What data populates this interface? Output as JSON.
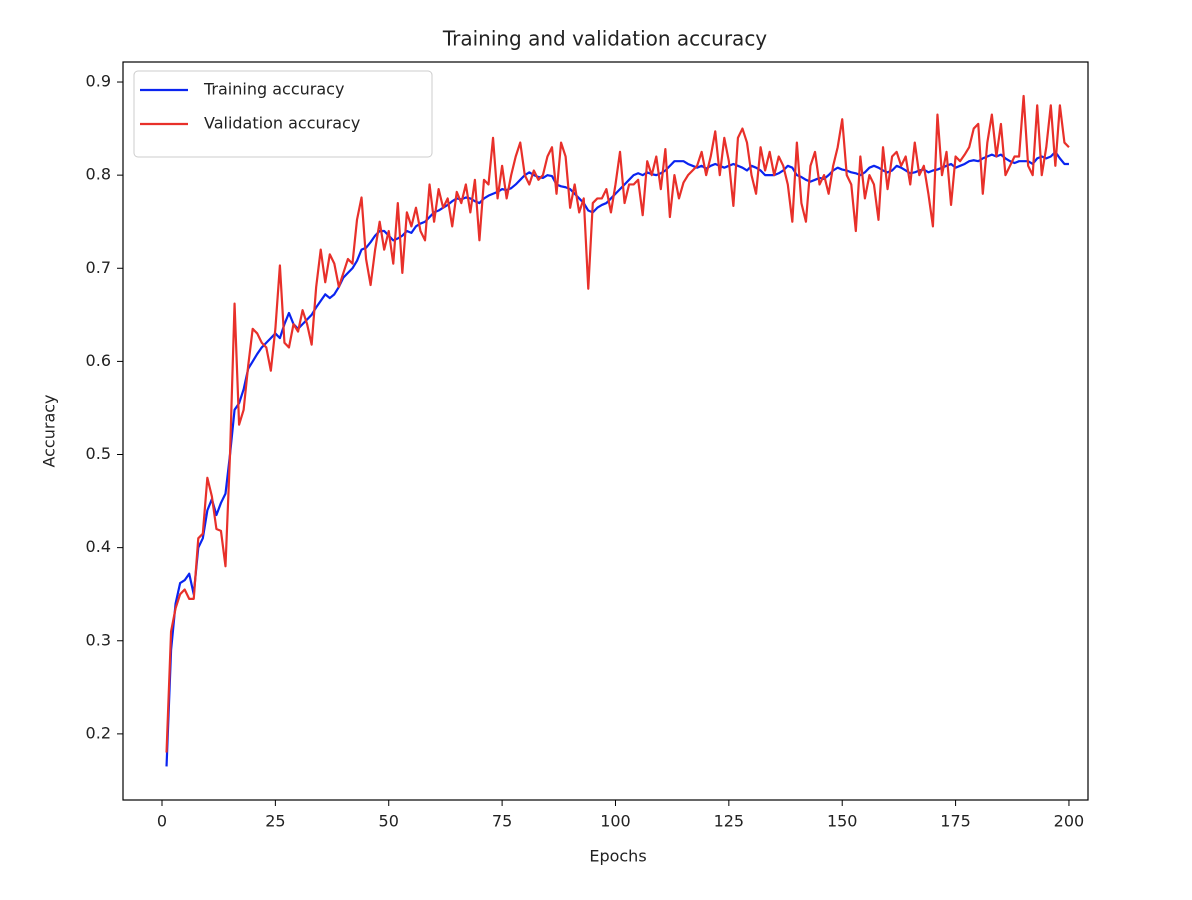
{
  "chart_data": {
    "type": "line",
    "title": "Training and validation accuracy",
    "xlabel": "Epochs",
    "ylabel": "Accuracy",
    "x": [
      1,
      2,
      3,
      4,
      5,
      6,
      7,
      8,
      9,
      10,
      11,
      12,
      13,
      14,
      15,
      16,
      17,
      18,
      19,
      20,
      21,
      22,
      23,
      24,
      25,
      26,
      27,
      28,
      29,
      30,
      31,
      32,
      33,
      34,
      35,
      36,
      37,
      38,
      39,
      40,
      41,
      42,
      43,
      44,
      45,
      46,
      47,
      48,
      49,
      50,
      51,
      52,
      53,
      54,
      55,
      56,
      57,
      58,
      59,
      60,
      61,
      62,
      63,
      64,
      65,
      66,
      67,
      68,
      69,
      70,
      71,
      72,
      73,
      74,
      75,
      76,
      77,
      78,
      79,
      80,
      81,
      82,
      83,
      84,
      85,
      86,
      87,
      88,
      89,
      90,
      91,
      92,
      93,
      94,
      95,
      96,
      97,
      98,
      99,
      100,
      101,
      102,
      103,
      104,
      105,
      106,
      107,
      108,
      109,
      110,
      111,
      112,
      113,
      114,
      115,
      116,
      117,
      118,
      119,
      120,
      121,
      122,
      123,
      124,
      125,
      126,
      127,
      128,
      129,
      130,
      131,
      132,
      133,
      134,
      135,
      136,
      137,
      138,
      139,
      140,
      141,
      142,
      143,
      144,
      145,
      146,
      147,
      148,
      149,
      150,
      151,
      152,
      153,
      154,
      155,
      156,
      157,
      158,
      159,
      160,
      161,
      162,
      163,
      164,
      165,
      166,
      167,
      168,
      169,
      170,
      171,
      172,
      173,
      174,
      175,
      176,
      177,
      178,
      179,
      180,
      181,
      182,
      183,
      184,
      185,
      186,
      187,
      188,
      189,
      190,
      191,
      192,
      193,
      194,
      195,
      196,
      197,
      198,
      199,
      200
    ],
    "series": [
      {
        "name": "Training accuracy",
        "color": "#0a24f0",
        "values": [
          0.165,
          0.29,
          0.34,
          0.362,
          0.365,
          0.372,
          0.35,
          0.4,
          0.41,
          0.44,
          0.452,
          0.435,
          0.448,
          0.458,
          0.5,
          0.548,
          0.555,
          0.57,
          0.592,
          0.6,
          0.608,
          0.615,
          0.62,
          0.625,
          0.63,
          0.625,
          0.64,
          0.652,
          0.64,
          0.635,
          0.64,
          0.645,
          0.65,
          0.658,
          0.665,
          0.672,
          0.668,
          0.672,
          0.68,
          0.69,
          0.695,
          0.7,
          0.708,
          0.72,
          0.722,
          0.728,
          0.735,
          0.74,
          0.74,
          0.735,
          0.73,
          0.732,
          0.735,
          0.74,
          0.738,
          0.745,
          0.748,
          0.75,
          0.755,
          0.76,
          0.762,
          0.765,
          0.768,
          0.772,
          0.775,
          0.774,
          0.776,
          0.775,
          0.772,
          0.77,
          0.775,
          0.778,
          0.78,
          0.782,
          0.785,
          0.784,
          0.786,
          0.79,
          0.795,
          0.8,
          0.803,
          0.8,
          0.798,
          0.797,
          0.8,
          0.799,
          0.79,
          0.788,
          0.787,
          0.785,
          0.78,
          0.775,
          0.77,
          0.762,
          0.76,
          0.765,
          0.768,
          0.77,
          0.775,
          0.78,
          0.785,
          0.79,
          0.795,
          0.8,
          0.802,
          0.8,
          0.803,
          0.801,
          0.8,
          0.802,
          0.805,
          0.81,
          0.815,
          0.815,
          0.815,
          0.812,
          0.81,
          0.808,
          0.81,
          0.807,
          0.81,
          0.812,
          0.81,
          0.808,
          0.81,
          0.812,
          0.81,
          0.808,
          0.805,
          0.81,
          0.808,
          0.805,
          0.8,
          0.8,
          0.8,
          0.802,
          0.805,
          0.81,
          0.808,
          0.8,
          0.798,
          0.795,
          0.793,
          0.795,
          0.797,
          0.796,
          0.8,
          0.805,
          0.808,
          0.806,
          0.805,
          0.803,
          0.802,
          0.8,
          0.803,
          0.808,
          0.81,
          0.808,
          0.805,
          0.803,
          0.805,
          0.81,
          0.808,
          0.805,
          0.802,
          0.803,
          0.805,
          0.806,
          0.803,
          0.805,
          0.806,
          0.808,
          0.81,
          0.812,
          0.808,
          0.81,
          0.812,
          0.815,
          0.816,
          0.815,
          0.818,
          0.82,
          0.822,
          0.82,
          0.822,
          0.818,
          0.815,
          0.813,
          0.815,
          0.815,
          0.815,
          0.812,
          0.818,
          0.82,
          0.818,
          0.82,
          0.825,
          0.818,
          0.812,
          0.812
        ]
      },
      {
        "name": "Validation accuracy",
        "color": "#e8302a",
        "values": [
          0.18,
          0.31,
          0.335,
          0.35,
          0.355,
          0.345,
          0.345,
          0.41,
          0.415,
          0.475,
          0.455,
          0.42,
          0.418,
          0.38,
          0.5,
          0.662,
          0.532,
          0.548,
          0.595,
          0.635,
          0.63,
          0.62,
          0.615,
          0.59,
          0.635,
          0.703,
          0.62,
          0.615,
          0.64,
          0.632,
          0.655,
          0.64,
          0.618,
          0.68,
          0.72,
          0.685,
          0.715,
          0.705,
          0.68,
          0.695,
          0.71,
          0.705,
          0.752,
          0.776,
          0.71,
          0.682,
          0.72,
          0.75,
          0.72,
          0.74,
          0.705,
          0.77,
          0.695,
          0.76,
          0.745,
          0.765,
          0.74,
          0.73,
          0.79,
          0.75,
          0.785,
          0.765,
          0.775,
          0.745,
          0.782,
          0.77,
          0.79,
          0.76,
          0.795,
          0.73,
          0.795,
          0.79,
          0.84,
          0.775,
          0.81,
          0.775,
          0.8,
          0.82,
          0.835,
          0.8,
          0.79,
          0.805,
          0.795,
          0.8,
          0.82,
          0.83,
          0.78,
          0.835,
          0.82,
          0.765,
          0.79,
          0.76,
          0.775,
          0.678,
          0.77,
          0.775,
          0.775,
          0.785,
          0.76,
          0.79,
          0.825,
          0.77,
          0.79,
          0.79,
          0.795,
          0.757,
          0.815,
          0.8,
          0.82,
          0.785,
          0.828,
          0.755,
          0.8,
          0.775,
          0.792,
          0.8,
          0.805,
          0.81,
          0.825,
          0.8,
          0.82,
          0.847,
          0.8,
          0.84,
          0.815,
          0.767,
          0.84,
          0.85,
          0.835,
          0.8,
          0.78,
          0.83,
          0.805,
          0.825,
          0.8,
          0.82,
          0.81,
          0.79,
          0.75,
          0.835,
          0.77,
          0.75,
          0.81,
          0.825,
          0.79,
          0.8,
          0.78,
          0.81,
          0.83,
          0.86,
          0.8,
          0.79,
          0.74,
          0.82,
          0.775,
          0.8,
          0.79,
          0.752,
          0.83,
          0.785,
          0.82,
          0.825,
          0.81,
          0.82,
          0.79,
          0.835,
          0.8,
          0.81,
          0.78,
          0.745,
          0.865,
          0.8,
          0.825,
          0.768,
          0.82,
          0.815,
          0.822,
          0.83,
          0.85,
          0.855,
          0.78,
          0.835,
          0.865,
          0.82,
          0.855,
          0.8,
          0.81,
          0.82,
          0.82,
          0.885,
          0.81,
          0.8,
          0.875,
          0.8,
          0.83,
          0.875,
          0.81,
          0.875,
          0.835,
          0.83
        ]
      }
    ],
    "xlim": [
      -8.6,
      204.2
    ],
    "ylim": [
      0.129,
      0.9215
    ],
    "xticks": [
      0,
      25,
      50,
      75,
      100,
      125,
      150,
      175,
      200
    ],
    "yticks": [
      0.2,
      0.3,
      0.4,
      0.5,
      0.6,
      0.7,
      0.8,
      0.9
    ],
    "legend": "upper left"
  }
}
